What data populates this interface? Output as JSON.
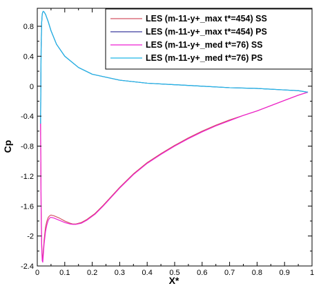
{
  "chart_data": {
    "type": "line",
    "title": "",
    "xlabel": "X*",
    "ylabel": "Cp",
    "xlim": [
      0,
      1
    ],
    "ylim": [
      -2.4,
      1.04
    ],
    "y_inverted": false,
    "grid": false,
    "legend_position": "top-right",
    "x_ticks": [
      0,
      0.1,
      0.2,
      0.3,
      0.4,
      0.5,
      0.6,
      0.7,
      0.8,
      0.9,
      1
    ],
    "x_tick_labels": [
      "0",
      "0.1",
      "0.2",
      "0.3",
      "0.4",
      "0.5",
      "0.6",
      "0.7",
      "0.8",
      "0.9",
      "1"
    ],
    "y_ticks": [
      0.8,
      0.4,
      0,
      -0.4,
      -0.8,
      -1.2,
      -1.6,
      -2,
      -2.4
    ],
    "y_tick_labels": [
      "0.8",
      "0.4",
      "0",
      "-0.4",
      "-0.8",
      "-1.2",
      "-1.6",
      "-2",
      "-2.4"
    ],
    "series": [
      {
        "name": "LES (m-11-y+_max t*=454) SS",
        "color": "#d45563",
        "x": [
          0.985,
          0.95,
          0.9,
          0.85,
          0.8,
          0.75,
          0.7,
          0.65,
          0.6,
          0.55,
          0.5,
          0.45,
          0.4,
          0.35,
          0.3,
          0.27,
          0.24,
          0.21,
          0.18,
          0.16,
          0.14,
          0.13,
          0.12,
          0.1,
          0.08,
          0.06,
          0.05,
          0.045,
          0.04,
          0.035,
          0.03,
          0.025,
          0.022,
          0.02,
          0.018,
          0.016,
          0.014,
          0.012
        ],
        "y": [
          -0.08,
          -0.12,
          -0.19,
          -0.26,
          -0.33,
          -0.39,
          -0.45,
          -0.52,
          -0.6,
          -0.69,
          -0.79,
          -0.9,
          -1.02,
          -1.17,
          -1.35,
          -1.47,
          -1.59,
          -1.7,
          -1.78,
          -1.82,
          -1.84,
          -1.84,
          -1.83,
          -1.8,
          -1.76,
          -1.73,
          -1.72,
          -1.73,
          -1.75,
          -1.8,
          -1.88,
          -2.05,
          -2.2,
          -2.3,
          -2.28,
          -2.1,
          -1.6,
          -0.5
        ]
      },
      {
        "name": "LES (m-11-y+_max t*=454) PS",
        "color": "#3b3b9e",
        "x": [
          0.012,
          0.014,
          0.016,
          0.018,
          0.02,
          0.022,
          0.025,
          0.03,
          0.04,
          0.05,
          0.07,
          0.1,
          0.15,
          0.2,
          0.3,
          0.4,
          0.5,
          0.6,
          0.7,
          0.8,
          0.9,
          0.95,
          0.985
        ],
        "y": [
          -0.5,
          0.5,
          0.85,
          0.96,
          0.99,
          1.0,
          0.99,
          0.96,
          0.86,
          0.74,
          0.56,
          0.4,
          0.25,
          0.16,
          0.08,
          0.04,
          0.02,
          0.0,
          -0.02,
          -0.03,
          -0.05,
          -0.06,
          -0.08
        ]
      },
      {
        "name": "LES (m-11-y+_med t*=76) SS",
        "color": "#ee1fd2",
        "x": [
          0.985,
          0.95,
          0.9,
          0.85,
          0.8,
          0.75,
          0.7,
          0.65,
          0.6,
          0.55,
          0.5,
          0.45,
          0.4,
          0.35,
          0.3,
          0.27,
          0.24,
          0.21,
          0.18,
          0.16,
          0.14,
          0.13,
          0.12,
          0.1,
          0.08,
          0.06,
          0.05,
          0.045,
          0.04,
          0.035,
          0.03,
          0.025,
          0.022,
          0.02,
          0.018,
          0.016,
          0.014,
          0.012
        ],
        "y": [
          -0.08,
          -0.12,
          -0.19,
          -0.26,
          -0.33,
          -0.39,
          -0.46,
          -0.53,
          -0.61,
          -0.7,
          -0.8,
          -0.91,
          -1.03,
          -1.18,
          -1.36,
          -1.48,
          -1.6,
          -1.71,
          -1.79,
          -1.83,
          -1.845,
          -1.845,
          -1.84,
          -1.82,
          -1.79,
          -1.76,
          -1.75,
          -1.76,
          -1.79,
          -1.85,
          -1.94,
          -2.1,
          -2.25,
          -2.35,
          -2.33,
          -2.15,
          -1.65,
          -0.5
        ]
      },
      {
        "name": "LES (m-11-y+_med t*=76) PS",
        "color": "#1fb8e8",
        "x": [
          0.012,
          0.014,
          0.016,
          0.018,
          0.02,
          0.022,
          0.025,
          0.03,
          0.04,
          0.05,
          0.07,
          0.1,
          0.15,
          0.2,
          0.3,
          0.4,
          0.5,
          0.6,
          0.7,
          0.8,
          0.9,
          0.95,
          0.985
        ],
        "y": [
          -0.5,
          0.5,
          0.85,
          0.96,
          0.99,
          1.0,
          0.99,
          0.96,
          0.86,
          0.74,
          0.56,
          0.4,
          0.25,
          0.16,
          0.08,
          0.04,
          0.02,
          0.0,
          -0.02,
          -0.03,
          -0.05,
          -0.06,
          -0.08
        ]
      }
    ]
  }
}
